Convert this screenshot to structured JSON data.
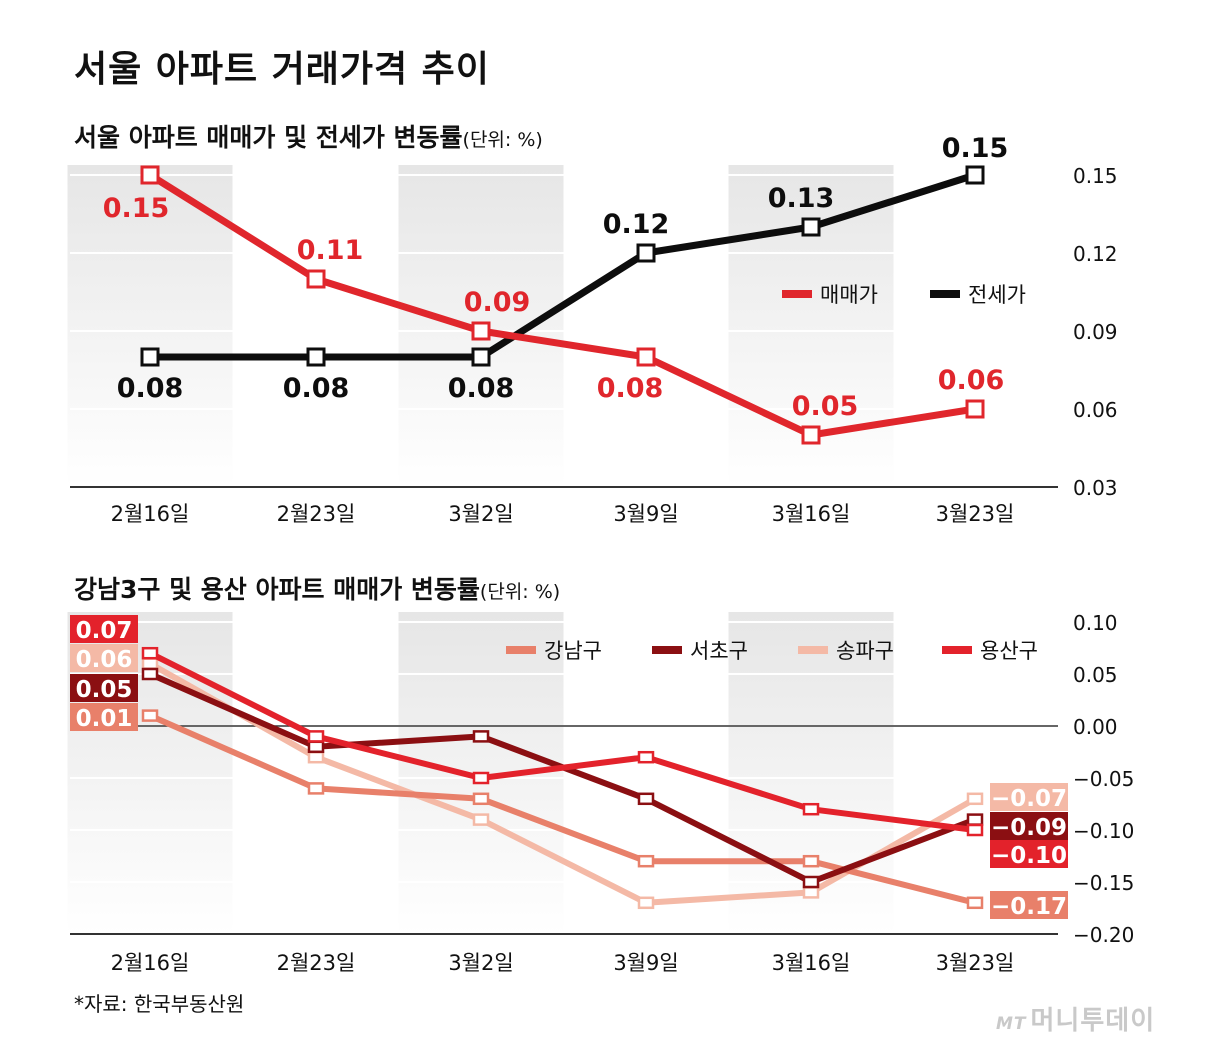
{
  "title": "서울 아파트 거래가격 추이",
  "source": "*자료: 한국부동산원",
  "brand": {
    "mark": "MT",
    "name": "머니투데이"
  },
  "colors": {
    "seoul_sale": "#e0262c",
    "seoul_jeonse": "#0d0d0d",
    "gangnam": "#e8806a",
    "seocho": "#8b0f12",
    "songpa": "#f4b9a6",
    "yongsan": "#e3222b"
  },
  "chart_data": [
    {
      "type": "line",
      "title": "서울 아파트 매매가 및 전세가 변동률",
      "unit": "(단위: %)",
      "categories": [
        "2월16일",
        "2월23일",
        "3월2일",
        "3월9일",
        "3월16일",
        "3월23일"
      ],
      "ylim": [
        0.03,
        0.15
      ],
      "yticks": [
        "0.15",
        "0.12",
        "0.09",
        "0.06",
        "0.03"
      ],
      "legend_position": "right",
      "series": [
        {
          "name": "매매가",
          "values": [
            0.15,
            0.11,
            0.09,
            0.08,
            0.05,
            0.06
          ],
          "labels": [
            "0.15",
            "0.11",
            "0.09",
            "0.08",
            "0.05",
            "0.06"
          ]
        },
        {
          "name": "전세가",
          "values": [
            0.08,
            0.08,
            0.08,
            0.12,
            0.13,
            0.15
          ],
          "labels": [
            "0.08",
            "0.08",
            "0.08",
            "0.12",
            "0.13",
            "0.15"
          ]
        }
      ]
    },
    {
      "type": "line",
      "title": "강남3구 및 용산 아파트 매매가 변동률",
      "unit": "(단위: %)",
      "categories": [
        "2월16일",
        "2월23일",
        "3월2일",
        "3월9일",
        "3월16일",
        "3월23일"
      ],
      "ylim": [
        -0.2,
        0.1
      ],
      "yticks": [
        "0.10",
        "0.05",
        "0.00",
        "−0.05",
        "−0.10",
        "−0.15",
        "−0.20"
      ],
      "legend_position": "top-right",
      "series": [
        {
          "name": "강남구",
          "values": [
            0.01,
            -0.06,
            -0.07,
            -0.13,
            -0.13,
            -0.17
          ],
          "start_label": "0.01",
          "end_label": "−0.17"
        },
        {
          "name": "서초구",
          "values": [
            0.05,
            -0.02,
            -0.01,
            -0.07,
            -0.15,
            -0.09
          ],
          "start_label": "0.05",
          "end_label": "−0.09"
        },
        {
          "name": "송파구",
          "values": [
            0.06,
            -0.03,
            -0.09,
            -0.17,
            -0.16,
            -0.07
          ],
          "start_label": "0.06",
          "end_label": "−0.07"
        },
        {
          "name": "용산구",
          "values": [
            0.07,
            -0.01,
            -0.05,
            -0.03,
            -0.08,
            -0.1
          ],
          "start_label": "0.07",
          "end_label": "−0.10"
        }
      ]
    }
  ]
}
